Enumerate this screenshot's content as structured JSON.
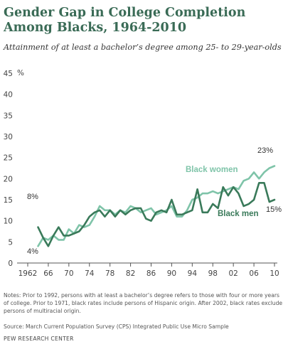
{
  "title": "Gender Gap in College Completion Among Blacks, 1964-2010",
  "subtitle": "Attainment of at least a bachelor’s degree among 25- to 29-year-olds",
  "notes": "Notes: Prior to 1992, persons with at least a bachelor’s degree refers to those with four or more years of college. Prior to 1971, black rates include persons of Hispanic origin. After 2002, black rates exclude persons of multiracial origin.",
  "source": "Source: March Current Population Survey (CPS) Integrated Public Use Micro Sample",
  "org": "PEW RESEARCH CENTER",
  "colors": {
    "women": "#7fc4a9",
    "men": "#3a7a5a",
    "title": "#3a6b56"
  },
  "chart_data": {
    "type": "line",
    "title": "Gender Gap in College Completion Among Blacks, 1964-2010",
    "xlabel": "",
    "ylabel": "%",
    "xlim": [
      1962,
      2010
    ],
    "ylim": [
      0,
      45
    ],
    "grid": false,
    "x_tick_labels": [
      "1962",
      "66",
      "70",
      "74",
      "78",
      "82",
      "86",
      "90",
      "94",
      "98",
      "02",
      "06",
      "10"
    ],
    "y_tick_labels": [
      "0",
      "5",
      "10",
      "15",
      "20",
      "25",
      "30",
      "35",
      "40",
      "45"
    ],
    "y_unit_label": "%",
    "x": [
      1964,
      1965,
      1966,
      1967,
      1968,
      1969,
      1970,
      1971,
      1972,
      1973,
      1974,
      1975,
      1976,
      1977,
      1978,
      1979,
      1980,
      1981,
      1982,
      1983,
      1984,
      1985,
      1986,
      1987,
      1988,
      1989,
      1990,
      1991,
      1992,
      1993,
      1994,
      1995,
      1996,
      1997,
      1998,
      1999,
      2000,
      2001,
      2002,
      2003,
      2004,
      2005,
      2006,
      2007,
      2008,
      2009,
      2010
    ],
    "series": [
      {
        "name": "Black women",
        "values": [
          4,
          6,
          5.5,
          6.5,
          5.5,
          5.5,
          8,
          7,
          9,
          8.5,
          9,
          11,
          13.5,
          12.5,
          12.5,
          11.5,
          12.5,
          12,
          13.5,
          13,
          12,
          12.5,
          13,
          11.5,
          12,
          12.5,
          13.5,
          11,
          11,
          12.5,
          15,
          15.5,
          16.5,
          16.5,
          17,
          16.5,
          17,
          17.5,
          18,
          17.5,
          19.5,
          20,
          21.5,
          20,
          21.5,
          22.5,
          23
        ],
        "end_label": "23%",
        "start_label": "4%"
      },
      {
        "name": "Black men",
        "values": [
          8.5,
          6,
          4,
          6.5,
          8.5,
          6.5,
          6.5,
          7,
          7.5,
          9,
          11,
          12,
          12.5,
          11,
          12.5,
          11,
          12.5,
          11.5,
          12.5,
          13,
          13,
          10.5,
          10,
          12,
          12.5,
          12,
          15,
          11.5,
          11.5,
          12,
          12.5,
          17.5,
          12,
          12,
          14,
          13,
          18,
          16,
          18,
          16.5,
          13.5,
          14,
          15,
          19,
          19,
          14.5,
          15
        ],
        "end_label": "15%",
        "start_label": "8%"
      }
    ]
  }
}
